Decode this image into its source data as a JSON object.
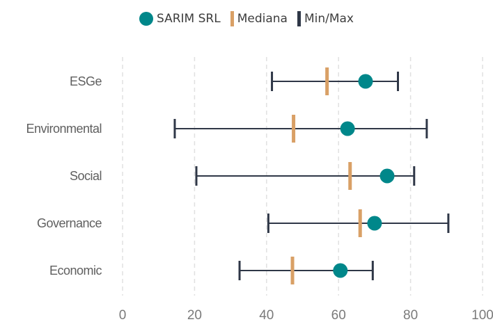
{
  "chart_data": {
    "type": "dot-range",
    "categories": [
      "ESGe",
      "Environmental",
      "Social",
      "Governance",
      "Economic"
    ],
    "series": [
      {
        "name": "SARIM SRL",
        "marker": "circle",
        "color": "#00878a",
        "values": [
          67.5,
          62.5,
          73.5,
          70.0,
          60.5
        ]
      },
      {
        "name": "Mediana",
        "marker": "vertical-bar",
        "color": "#d9a066",
        "values": [
          56.8,
          47.5,
          63.2,
          66.0,
          47.2
        ]
      },
      {
        "name": "Min/Max",
        "marker": "range",
        "color": "#2f3747",
        "min": [
          41.5,
          14.5,
          20.5,
          40.5,
          32.5
        ],
        "max": [
          76.5,
          84.5,
          81.0,
          90.5,
          69.5
        ]
      }
    ],
    "x_ticks": [
      0,
      20,
      40,
      60,
      80,
      100
    ],
    "xlim": [
      0,
      100
    ],
    "grid": "vertical-dashed",
    "legend_position": "top-center"
  },
  "legend": {
    "items": [
      {
        "label": "SARIM SRL",
        "color": "#00878a"
      },
      {
        "label": "Mediana",
        "color": "#d9a066"
      },
      {
        "label": "Min/Max",
        "color": "#2f3747"
      }
    ]
  }
}
